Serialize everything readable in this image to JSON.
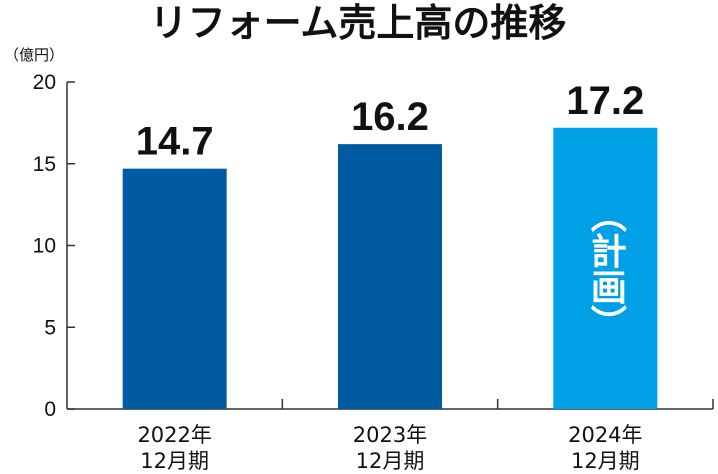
{
  "chart_data": {
    "type": "bar",
    "title": "リフォーム売上高の推移",
    "ylabel": "（億円）",
    "xlabel": "",
    "categories": [
      [
        "2022年",
        "12月期"
      ],
      [
        "2023年",
        "12月期"
      ],
      [
        "2024年",
        "12月期"
      ]
    ],
    "values": [
      14.7,
      16.2,
      17.2
    ],
    "value_labels": [
      "14.7",
      "16.2",
      "17.2"
    ],
    "bar_colors": [
      "#005ba3",
      "#005ba3",
      "#00a0e6"
    ],
    "annotations": [
      {
        "category_index": 2,
        "text": "（計画）",
        "orientation": "vertical"
      }
    ],
    "ylim": [
      0,
      20
    ],
    "yticks": [
      0,
      5,
      10,
      15,
      20
    ],
    "grid": false,
    "legend": "none"
  }
}
